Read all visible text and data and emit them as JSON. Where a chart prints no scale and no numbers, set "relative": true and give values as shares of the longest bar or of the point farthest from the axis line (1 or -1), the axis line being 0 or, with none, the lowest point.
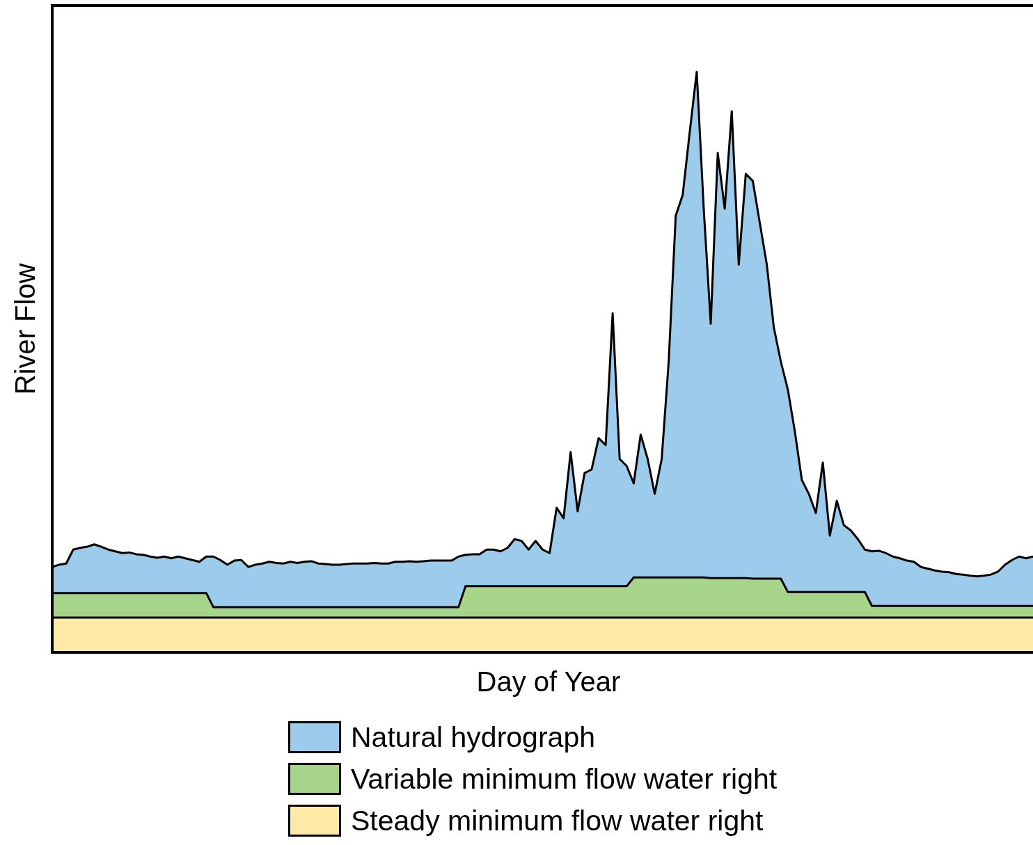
{
  "chart_data": {
    "type": "area",
    "relative": true,
    "xlabel": "Day of Year",
    "ylabel": "River Flow",
    "legend": "bottom",
    "categories": [
      null,
      null,
      null,
      null,
      null,
      null,
      null,
      null,
      null,
      null,
      null,
      null,
      null,
      null,
      null,
      null,
      null,
      null,
      null,
      null,
      null,
      null,
      null,
      null,
      null,
      null,
      null,
      null,
      null,
      null,
      null,
      null,
      null,
      null,
      null,
      null,
      null,
      null,
      null,
      null,
      null,
      null,
      null,
      null,
      null,
      null,
      null,
      null,
      null,
      null,
      null,
      null,
      null,
      null,
      null,
      null,
      null,
      null,
      null,
      null,
      null,
      null,
      null,
      null,
      null,
      null,
      null,
      null,
      null,
      null,
      null,
      null,
      null,
      null,
      null,
      null,
      null,
      null,
      null,
      null,
      null,
      null,
      null,
      null,
      null,
      null,
      null,
      null,
      null,
      null,
      null,
      null,
      null,
      null,
      null,
      null,
      null,
      null,
      null,
      null,
      null,
      null,
      null,
      null,
      null,
      null,
      null,
      null,
      null,
      null,
      null,
      null,
      null,
      null,
      null,
      null,
      null,
      null,
      null,
      null,
      null,
      null,
      null,
      null,
      null,
      null,
      null,
      null,
      null,
      null,
      null,
      null,
      null,
      null,
      null,
      null,
      null,
      null,
      null,
      null,
      null
    ],
    "series": [
      {
        "name": "Natural hydrograph",
        "color": "#9ccbec",
        "values": [
          0.147,
          0.151,
          0.153,
          0.177,
          0.18,
          0.182,
          0.186,
          0.182,
          0.177,
          0.174,
          0.171,
          0.172,
          0.169,
          0.168,
          0.165,
          0.163,
          0.165,
          0.162,
          0.165,
          0.162,
          0.159,
          0.156,
          0.165,
          0.165,
          0.159,
          0.151,
          0.158,
          0.159,
          0.147,
          0.151,
          0.153,
          0.156,
          0.154,
          0.153,
          0.156,
          0.154,
          0.156,
          0.157,
          0.153,
          0.152,
          0.151,
          0.151,
          0.152,
          0.153,
          0.153,
          0.153,
          0.154,
          0.153,
          0.153,
          0.156,
          0.156,
          0.157,
          0.156,
          0.157,
          0.158,
          0.158,
          0.158,
          0.158,
          0.165,
          0.168,
          0.169,
          0.169,
          0.177,
          0.177,
          0.174,
          0.18,
          0.195,
          0.192,
          0.177,
          0.192,
          0.177,
          0.171,
          0.249,
          0.231,
          0.345,
          0.243,
          0.309,
          0.315,
          0.369,
          0.357,
          0.584,
          0.333,
          0.321,
          0.291,
          0.375,
          0.333,
          0.273,
          0.333,
          0.501,
          0.752,
          0.788,
          0.896,
          1,
          0.764,
          0.566,
          0.86,
          0.764,
          0.932,
          0.668,
          0.824,
          0.812,
          0.74,
          0.668,
          0.56,
          0.501,
          0.453,
          0.381,
          0.297,
          0.273,
          0.24,
          0.327,
          0.201,
          0.261,
          0.219,
          0.21,
          0.195,
          0.177,
          0.174,
          0.175,
          0.171,
          0.165,
          0.162,
          0.158,
          0.156,
          0.147,
          0.144,
          0.141,
          0.139,
          0.138,
          0.135,
          0.134,
          0.132,
          0.131,
          0.132,
          0.134,
          0.139,
          0.151,
          0.159,
          0.165,
          0.162,
          0.165
        ]
      },
      {
        "name": "Variable minimum flow water right",
        "color": "#a6d489",
        "values": [
          0.102,
          0.102,
          0.102,
          0.102,
          0.102,
          0.102,
          0.102,
          0.102,
          0.102,
          0.102,
          0.102,
          0.102,
          0.102,
          0.102,
          0.102,
          0.102,
          0.102,
          0.102,
          0.102,
          0.102,
          0.102,
          0.102,
          0.102,
          0.078,
          0.078,
          0.078,
          0.078,
          0.078,
          0.078,
          0.078,
          0.078,
          0.078,
          0.078,
          0.078,
          0.078,
          0.078,
          0.078,
          0.078,
          0.078,
          0.078,
          0.078,
          0.078,
          0.078,
          0.078,
          0.078,
          0.078,
          0.078,
          0.078,
          0.078,
          0.078,
          0.078,
          0.078,
          0.078,
          0.078,
          0.078,
          0.078,
          0.078,
          0.078,
          0.078,
          0.114,
          0.114,
          0.114,
          0.114,
          0.114,
          0.114,
          0.114,
          0.114,
          0.114,
          0.114,
          0.114,
          0.114,
          0.114,
          0.114,
          0.114,
          0.114,
          0.114,
          0.114,
          0.114,
          0.114,
          0.114,
          0.114,
          0.114,
          0.114,
          0.129,
          0.129,
          0.129,
          0.129,
          0.129,
          0.129,
          0.129,
          0.129,
          0.129,
          0.129,
          0.129,
          0.128,
          0.128,
          0.128,
          0.128,
          0.128,
          0.128,
          0.127,
          0.127,
          0.127,
          0.127,
          0.127,
          0.104,
          0.104,
          0.104,
          0.104,
          0.104,
          0.104,
          0.104,
          0.104,
          0.104,
          0.104,
          0.104,
          0.104,
          0.08,
          0.08,
          0.08,
          0.08,
          0.08,
          0.08,
          0.08,
          0.08,
          0.08,
          0.08,
          0.08,
          0.08,
          0.08,
          0.08,
          0.08,
          0.08,
          0.08,
          0.08,
          0.08,
          0.08,
          0.08,
          0.08,
          0.08,
          0.08
        ]
      },
      {
        "name": "Steady minimum flow water right",
        "color": "#feeaa6",
        "values": [
          0.06,
          0.06,
          0.06,
          0.06,
          0.06,
          0.06,
          0.06,
          0.06,
          0.06,
          0.06,
          0.06,
          0.06,
          0.06,
          0.06,
          0.06,
          0.06,
          0.06,
          0.06,
          0.06,
          0.06,
          0.06,
          0.06,
          0.06,
          0.06,
          0.06,
          0.06,
          0.06,
          0.06,
          0.06,
          0.06,
          0.06,
          0.06,
          0.06,
          0.06,
          0.06,
          0.06,
          0.06,
          0.06,
          0.06,
          0.06,
          0.06,
          0.06,
          0.06,
          0.06,
          0.06,
          0.06,
          0.06,
          0.06,
          0.06,
          0.06,
          0.06,
          0.06,
          0.06,
          0.06,
          0.06,
          0.06,
          0.06,
          0.06,
          0.06,
          0.06,
          0.06,
          0.06,
          0.06,
          0.06,
          0.06,
          0.06,
          0.06,
          0.06,
          0.06,
          0.06,
          0.06,
          0.06,
          0.06,
          0.06,
          0.06,
          0.06,
          0.06,
          0.06,
          0.06,
          0.06,
          0.06,
          0.06,
          0.06,
          0.06,
          0.06,
          0.06,
          0.06,
          0.06,
          0.06,
          0.06,
          0.06,
          0.06,
          0.06,
          0.06,
          0.06,
          0.06,
          0.06,
          0.06,
          0.06,
          0.06,
          0.06,
          0.06,
          0.06,
          0.06,
          0.06,
          0.06,
          0.06,
          0.06,
          0.06,
          0.06,
          0.06,
          0.06,
          0.06,
          0.06,
          0.06,
          0.06,
          0.06,
          0.06,
          0.06,
          0.06,
          0.06,
          0.06,
          0.06,
          0.06,
          0.06,
          0.06,
          0.06,
          0.06,
          0.06,
          0.06,
          0.06,
          0.06,
          0.06,
          0.06,
          0.06,
          0.06,
          0.06,
          0.06,
          0.06,
          0.06,
          0.06
        ]
      }
    ]
  }
}
